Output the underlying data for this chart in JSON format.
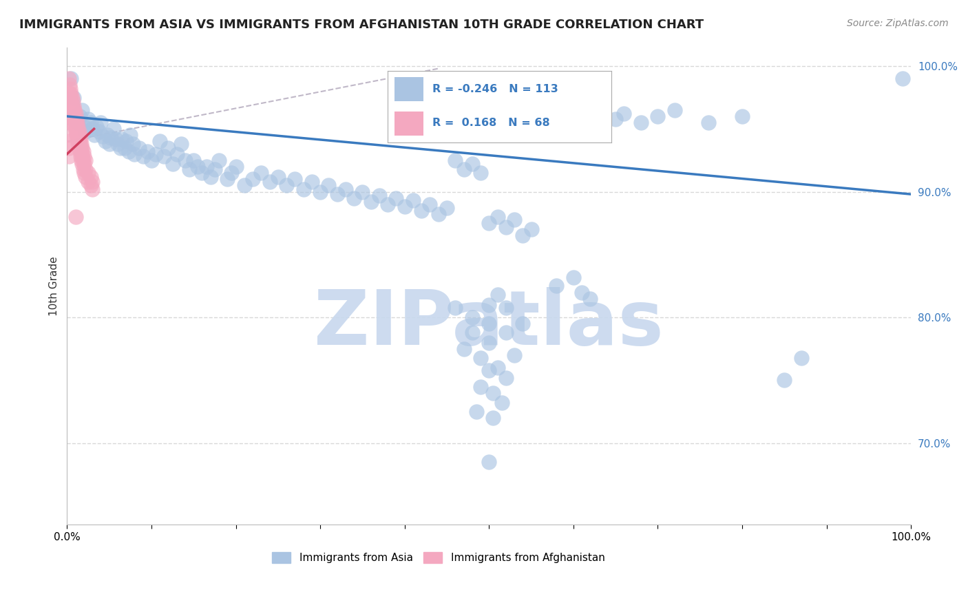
{
  "title": "IMMIGRANTS FROM ASIA VS IMMIGRANTS FROM AFGHANISTAN 10TH GRADE CORRELATION CHART",
  "source": "Source: ZipAtlas.com",
  "ylabel": "10th Grade",
  "legend_entries": [
    {
      "label": "Immigrants from Asia",
      "color": "#aac4e2",
      "R": "-0.246",
      "N": "113"
    },
    {
      "label": "Immigrants from Afghanistan",
      "color": "#f4a8c0",
      "R": "0.168",
      "N": "68"
    }
  ],
  "blue_scatter": [
    [
      0.005,
      0.99
    ],
    [
      0.008,
      0.975
    ],
    [
      0.01,
      0.96
    ],
    [
      0.012,
      0.955
    ],
    [
      0.015,
      0.96
    ],
    [
      0.018,
      0.965
    ],
    [
      0.02,
      0.952
    ],
    [
      0.022,
      0.948
    ],
    [
      0.025,
      0.958
    ],
    [
      0.028,
      0.955
    ],
    [
      0.03,
      0.95
    ],
    [
      0.032,
      0.945
    ],
    [
      0.035,
      0.952
    ],
    [
      0.038,
      0.948
    ],
    [
      0.04,
      0.955
    ],
    [
      0.042,
      0.944
    ],
    [
      0.045,
      0.94
    ],
    [
      0.048,
      0.945
    ],
    [
      0.05,
      0.938
    ],
    [
      0.052,
      0.943
    ],
    [
      0.055,
      0.95
    ],
    [
      0.058,
      0.942
    ],
    [
      0.06,
      0.938
    ],
    [
      0.063,
      0.935
    ],
    [
      0.065,
      0.942
    ],
    [
      0.068,
      0.935
    ],
    [
      0.07,
      0.94
    ],
    [
      0.073,
      0.932
    ],
    [
      0.075,
      0.945
    ],
    [
      0.078,
      0.938
    ],
    [
      0.08,
      0.93
    ],
    [
      0.085,
      0.935
    ],
    [
      0.09,
      0.928
    ],
    [
      0.095,
      0.932
    ],
    [
      0.1,
      0.925
    ],
    [
      0.105,
      0.93
    ],
    [
      0.11,
      0.94
    ],
    [
      0.115,
      0.928
    ],
    [
      0.12,
      0.935
    ],
    [
      0.125,
      0.922
    ],
    [
      0.13,
      0.93
    ],
    [
      0.135,
      0.938
    ],
    [
      0.14,
      0.925
    ],
    [
      0.145,
      0.918
    ],
    [
      0.15,
      0.925
    ],
    [
      0.155,
      0.92
    ],
    [
      0.16,
      0.915
    ],
    [
      0.165,
      0.92
    ],
    [
      0.17,
      0.912
    ],
    [
      0.175,
      0.918
    ],
    [
      0.18,
      0.925
    ],
    [
      0.19,
      0.91
    ],
    [
      0.195,
      0.915
    ],
    [
      0.2,
      0.92
    ],
    [
      0.21,
      0.905
    ],
    [
      0.22,
      0.91
    ],
    [
      0.23,
      0.915
    ],
    [
      0.24,
      0.908
    ],
    [
      0.25,
      0.912
    ],
    [
      0.26,
      0.905
    ],
    [
      0.27,
      0.91
    ],
    [
      0.28,
      0.902
    ],
    [
      0.29,
      0.908
    ],
    [
      0.3,
      0.9
    ],
    [
      0.31,
      0.905
    ],
    [
      0.32,
      0.898
    ],
    [
      0.33,
      0.902
    ],
    [
      0.34,
      0.895
    ],
    [
      0.35,
      0.9
    ],
    [
      0.36,
      0.892
    ],
    [
      0.37,
      0.897
    ],
    [
      0.38,
      0.89
    ],
    [
      0.39,
      0.895
    ],
    [
      0.4,
      0.888
    ],
    [
      0.41,
      0.893
    ],
    [
      0.42,
      0.885
    ],
    [
      0.43,
      0.89
    ],
    [
      0.44,
      0.882
    ],
    [
      0.45,
      0.887
    ],
    [
      0.46,
      0.925
    ],
    [
      0.47,
      0.918
    ],
    [
      0.48,
      0.922
    ],
    [
      0.49,
      0.915
    ],
    [
      0.5,
      0.875
    ],
    [
      0.51,
      0.88
    ],
    [
      0.52,
      0.872
    ],
    [
      0.53,
      0.878
    ],
    [
      0.54,
      0.865
    ],
    [
      0.55,
      0.87
    ],
    [
      0.58,
      0.825
    ],
    [
      0.6,
      0.832
    ],
    [
      0.61,
      0.82
    ],
    [
      0.62,
      0.815
    ],
    [
      0.65,
      0.958
    ],
    [
      0.66,
      0.962
    ],
    [
      0.68,
      0.955
    ],
    [
      0.7,
      0.96
    ],
    [
      0.72,
      0.965
    ],
    [
      0.76,
      0.955
    ],
    [
      0.8,
      0.96
    ],
    [
      0.85,
      0.75
    ],
    [
      0.87,
      0.768
    ],
    [
      0.99,
      0.99
    ],
    [
      0.5,
      0.81
    ],
    [
      0.51,
      0.818
    ],
    [
      0.46,
      0.808
    ],
    [
      0.48,
      0.8
    ],
    [
      0.5,
      0.795
    ],
    [
      0.52,
      0.808
    ],
    [
      0.54,
      0.795
    ],
    [
      0.48,
      0.788
    ],
    [
      0.5,
      0.78
    ],
    [
      0.52,
      0.788
    ],
    [
      0.47,
      0.775
    ],
    [
      0.49,
      0.768
    ],
    [
      0.51,
      0.76
    ],
    [
      0.53,
      0.77
    ],
    [
      0.5,
      0.758
    ],
    [
      0.52,
      0.752
    ],
    [
      0.49,
      0.745
    ],
    [
      0.505,
      0.74
    ],
    [
      0.515,
      0.732
    ],
    [
      0.485,
      0.725
    ],
    [
      0.505,
      0.72
    ],
    [
      0.5,
      0.685
    ]
  ],
  "pink_scatter": [
    [
      0.002,
      0.99
    ],
    [
      0.003,
      0.985
    ],
    [
      0.003,
      0.978
    ],
    [
      0.004,
      0.975
    ],
    [
      0.004,
      0.968
    ],
    [
      0.004,
      0.982
    ],
    [
      0.005,
      0.972
    ],
    [
      0.005,
      0.965
    ],
    [
      0.005,
      0.978
    ],
    [
      0.006,
      0.968
    ],
    [
      0.006,
      0.962
    ],
    [
      0.006,
      0.975
    ],
    [
      0.007,
      0.965
    ],
    [
      0.007,
      0.958
    ],
    [
      0.007,
      0.972
    ],
    [
      0.008,
      0.962
    ],
    [
      0.008,
      0.955
    ],
    [
      0.008,
      0.968
    ],
    [
      0.009,
      0.958
    ],
    [
      0.009,
      0.952
    ],
    [
      0.009,
      0.965
    ],
    [
      0.01,
      0.955
    ],
    [
      0.01,
      0.948
    ],
    [
      0.01,
      0.962
    ],
    [
      0.011,
      0.952
    ],
    [
      0.011,
      0.945
    ],
    [
      0.011,
      0.958
    ],
    [
      0.012,
      0.948
    ],
    [
      0.012,
      0.942
    ],
    [
      0.012,
      0.955
    ],
    [
      0.013,
      0.945
    ],
    [
      0.013,
      0.938
    ],
    [
      0.013,
      0.952
    ],
    [
      0.014,
      0.942
    ],
    [
      0.014,
      0.935
    ],
    [
      0.014,
      0.948
    ],
    [
      0.015,
      0.938
    ],
    [
      0.015,
      0.932
    ],
    [
      0.015,
      0.945
    ],
    [
      0.016,
      0.935
    ],
    [
      0.016,
      0.928
    ],
    [
      0.016,
      0.942
    ],
    [
      0.017,
      0.932
    ],
    [
      0.017,
      0.925
    ],
    [
      0.017,
      0.938
    ],
    [
      0.018,
      0.928
    ],
    [
      0.018,
      0.922
    ],
    [
      0.018,
      0.935
    ],
    [
      0.019,
      0.925
    ],
    [
      0.019,
      0.918
    ],
    [
      0.019,
      0.932
    ],
    [
      0.02,
      0.922
    ],
    [
      0.02,
      0.915
    ],
    [
      0.02,
      0.928
    ],
    [
      0.022,
      0.918
    ],
    [
      0.022,
      0.912
    ],
    [
      0.022,
      0.925
    ],
    [
      0.025,
      0.915
    ],
    [
      0.025,
      0.908
    ],
    [
      0.028,
      0.912
    ],
    [
      0.028,
      0.905
    ],
    [
      0.03,
      0.908
    ],
    [
      0.03,
      0.902
    ],
    [
      0.003,
      0.96
    ],
    [
      0.004,
      0.955
    ],
    [
      0.002,
      0.945
    ],
    [
      0.002,
      0.935
    ],
    [
      0.003,
      0.94
    ],
    [
      0.002,
      0.928
    ],
    [
      0.01,
      0.88
    ]
  ],
  "blue_line_x": [
    0.0,
    1.0
  ],
  "blue_line_y": [
    0.96,
    0.898
  ],
  "pink_line_x": [
    0.0,
    0.032
  ],
  "pink_line_y": [
    0.93,
    0.95
  ],
  "dashed_line_x": [
    0.0,
    0.44
  ],
  "dashed_line_y": [
    0.94,
    0.998
  ],
  "xlim": [
    0.0,
    1.0
  ],
  "ylim": [
    0.635,
    1.015
  ],
  "ytick_positions": [
    0.7,
    0.8,
    0.9,
    1.0
  ],
  "ytick_labels": [
    "70.0%",
    "80.0%",
    "90.0%",
    "100.0%"
  ],
  "xtick_positions": [
    0.0,
    0.1,
    0.2,
    0.3,
    0.4,
    0.5,
    0.6,
    0.7,
    0.8,
    0.9,
    1.0
  ],
  "xtick_labels": [
    "0.0%",
    "",
    "",
    "",
    "",
    "",
    "",
    "",
    "",
    "",
    "100.0%"
  ],
  "grid_color": "#d8d8d8",
  "blue_color": "#aac4e2",
  "pink_color": "#f4a8c0",
  "blue_line_color": "#3a7abf",
  "pink_line_color": "#d04060",
  "dashed_line_color": "#c0b8c8",
  "watermark_color": "#c8d8ee",
  "background_color": "#ffffff",
  "title_fontsize": 13,
  "axis_label_fontsize": 11,
  "tick_fontsize": 11,
  "source_fontsize": 10
}
